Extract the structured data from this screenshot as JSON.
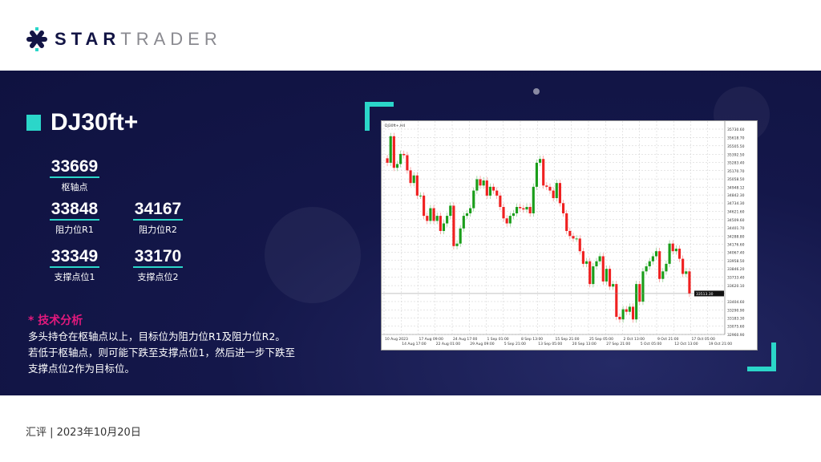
{
  "brand": {
    "name_bold": "STAR",
    "name_light": "TRADER",
    "colors": {
      "navy": "#131545",
      "cyan": "#2bd6c9"
    }
  },
  "title": "DJ30ft+",
  "levels": {
    "pivot": {
      "value": "33669",
      "label": "枢轴点"
    },
    "r1": {
      "value": "33848",
      "label": "阻力位R1"
    },
    "r2": {
      "value": "34167",
      "label": "阻力位R2"
    },
    "s1": {
      "value": "33349",
      "label": "支撑点位1"
    },
    "s2": {
      "value": "33170",
      "label": "支撑点位2"
    }
  },
  "analysis": {
    "heading": "* 技术分析",
    "lines": [
      "多头持仓在枢轴点以上，目标位为阻力位R1及阻力位R2。",
      "若低于枢轴点，则可能下跌至支撑点位1，然后进一步下跌至",
      "支撑点位2作为目标位。"
    ]
  },
  "footer": "汇评 | 2023年10月20日",
  "chart_data": {
    "type": "candlestick",
    "header": "DJ30ft+,H4",
    "up_color": "#1a9e1a",
    "down_color": "#f02020",
    "ylim": [
      32960.9,
      35730.6
    ],
    "y_ticks": [
      "35730.60",
      "35618.70",
      "35505.50",
      "35392.50",
      "35283.40",
      "35170.70",
      "35058.50",
      "34948.12",
      "34842.30",
      "34734.30",
      "34621.60",
      "34509.60",
      "34401.70",
      "34288.80",
      "34176.60",
      "34067.40",
      "33958.50",
      "33846.20",
      "33733.40",
      "33620.10",
      "33404.60",
      "33290.90",
      "33183.30",
      "33075.60",
      "32960.90"
    ],
    "current_price": "33513.30",
    "x_ticks": [
      "10 Aug 2023",
      "14 Aug 17:00",
      "17 Aug 09:00",
      "22 Aug 01:00",
      "24 Aug 17:00",
      "29 Aug 09:00",
      "1 Sep 01:00",
      "5 Sep 21:00",
      "8 Sep 13:00",
      "13 Sep 05:00",
      "15 Sep 21:00",
      "20 Sep 13:00",
      "25 Sep 05:00",
      "27 Sep 21:00",
      "2 Oct 13:00",
      "5 Oct 05:00",
      "9 Oct 21:00",
      "12 Oct 13:00",
      "17 Oct 05:00",
      "19 Oct 21:00"
    ],
    "closes": [
      35277,
      35635,
      35209,
      35260,
      35396,
      35379,
      35175,
      35004,
      35106,
      34834,
      34834,
      34561,
      34493,
      34664,
      34493,
      34561,
      34357,
      34459,
      34561,
      34698,
      34153,
      34187,
      34391,
      34561,
      34595,
      34664,
      34902,
      35055,
      34970,
      35038,
      34834,
      34953,
      34902,
      34834,
      34681,
      34527,
      34459,
      34561,
      34595,
      34681,
      34664,
      34647,
      34681,
      34595,
      34953,
      35277,
      35328,
      34970,
      34953,
      34902,
      34800,
      35004,
      34732,
      34595,
      34357,
      34289,
      34255,
      34255,
      34084,
      33914,
      33948,
      33641,
      33880,
      33948,
      34016,
      33676,
      33846,
      33607,
      33641,
      33199,
      33164,
      33301,
      33267,
      33335,
      33164,
      33641,
      33403,
      33812,
      33880,
      33948,
      34016,
      34084,
      33710,
      33812,
      33914,
      34187,
      34084,
      34118,
      33982,
      33778,
      33812,
      33512
    ]
  }
}
